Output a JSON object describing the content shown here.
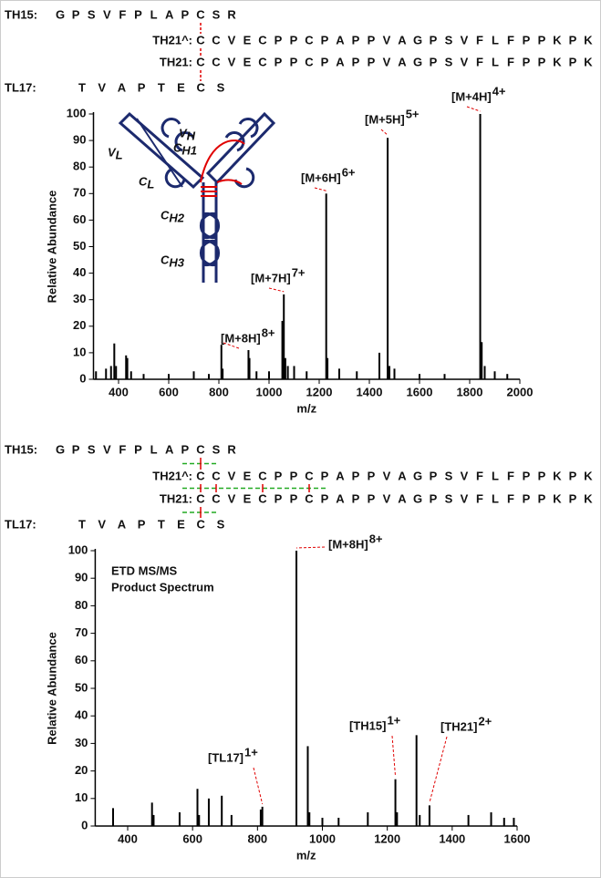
{
  "chart_data": [
    {
      "type": "bar",
      "xlabel": "m/z",
      "ylabel": "Relative Abundance",
      "color": "#000000",
      "xlim": [
        300,
        2000
      ],
      "xticks": [
        400,
        600,
        800,
        1000,
        1200,
        1400,
        1600,
        1800,
        2000
      ],
      "ylim": [
        0,
        100
      ],
      "yticks": [
        0,
        10,
        20,
        30,
        40,
        50,
        60,
        70,
        80,
        90,
        100
      ],
      "x": [
        310,
        350,
        370,
        383,
        390,
        430,
        435,
        450,
        500,
        600,
        700,
        760,
        810,
        815,
        918,
        922,
        950,
        1000,
        1053,
        1059,
        1065,
        1075,
        1100,
        1150,
        1228,
        1233,
        1280,
        1350,
        1440,
        1473,
        1480,
        1500,
        1600,
        1700,
        1842,
        1848,
        1860,
        1900,
        1950
      ],
      "values": [
        3,
        4,
        5,
        13.5,
        5,
        9,
        8,
        3,
        2,
        2,
        3,
        2,
        13,
        4,
        11,
        8,
        3,
        3,
        22,
        32,
        8,
        5,
        5,
        3,
        70,
        8,
        4,
        3,
        10,
        91,
        5,
        4,
        2,
        2,
        100,
        14,
        5,
        3,
        2
      ],
      "annotation_color": "#e00000",
      "annotations": [
        {
          "text": "[M+8H]",
          "sup": "8+",
          "x": 810
        },
        {
          "text": "[M+7H]",
          "sup": "7+",
          "x": 1059
        },
        {
          "text": "[M+6H]",
          "sup": "6+",
          "x": 1228
        },
        {
          "text": "[M+5H]",
          "sup": "5+",
          "x": 1473
        },
        {
          "text": "[M+4H]",
          "sup": "4+",
          "x": 1842
        }
      ],
      "highlight": "C",
      "highlight_color": "#e00000",
      "link_color": "#e00000",
      "sequences": [
        {
          "label": "TH15:",
          "residues": "GPSVFPLAPCSR"
        },
        {
          "label": "TH21^:",
          "residues": "CCVECPPCPAPPVAGPSVFLFPPKPK"
        },
        {
          "label": "TH21:",
          "residues": "CCVECPPCPAPPVAGPSVFLFPPKPK"
        },
        {
          "label": "TL17:",
          "residues": "TVAPTECS"
        }
      ],
      "inset_labels": [
        {
          "main": "V",
          "sub": "H"
        },
        {
          "main": "V",
          "sub": "L"
        },
        {
          "main": "C",
          "sub": "H1"
        },
        {
          "main": "C",
          "sub": "L"
        },
        {
          "main": "C",
          "sub": "H2"
        },
        {
          "main": "C",
          "sub": "H3"
        }
      ]
    },
    {
      "type": "bar",
      "xlabel": "m/z",
      "ylabel": "Relative Abundance",
      "color": "#000000",
      "title": [
        "ETD MS/MS",
        "Product Spectrum"
      ],
      "xlim": [
        300,
        1600
      ],
      "xticks": [
        400,
        600,
        800,
        1000,
        1200,
        1400,
        1600
      ],
      "ylim": [
        0,
        100
      ],
      "yticks": [
        0,
        10,
        20,
        30,
        40,
        50,
        60,
        70,
        80,
        90,
        100
      ],
      "x": [
        355,
        475,
        480,
        560,
        615,
        620,
        650,
        690,
        720,
        810,
        815,
        920,
        955,
        960,
        1000,
        1050,
        1140,
        1225,
        1230,
        1290,
        1300,
        1330,
        1450,
        1520,
        1560,
        1590
      ],
      "values": [
        6.5,
        8.5,
        4,
        5,
        13.5,
        4,
        10,
        11,
        4,
        6,
        7,
        100,
        29,
        5,
        3,
        3,
        5,
        17,
        5,
        33,
        4,
        7.5,
        4,
        5,
        3,
        3
      ],
      "annotation_color": "#e00000",
      "annotations": [
        {
          "text": "[M+8H]",
          "sup": "8+",
          "x": 920
        },
        {
          "text": "[TL17]",
          "sup": "1+",
          "x": 815
        },
        {
          "text": "[TH15]",
          "sup": "1+",
          "x": 1225
        },
        {
          "text": "[TH21]",
          "sup": "2+",
          "x": 1330
        }
      ],
      "highlight": "C",
      "highlight_color": "#e00000",
      "link_color": "#22aa22",
      "sequences": [
        {
          "label": "TH15:",
          "residues": "GPSVFPLAPCSR"
        },
        {
          "label": "TH21^:",
          "residues": "CCVECPPCPAPPVAGPSVFLFPPKPK"
        },
        {
          "label": "TH21:",
          "residues": "CCVECPPCPAPPVAGPSVFLFPPKPK"
        },
        {
          "label": "TL17:",
          "residues": "TVAPTECS"
        }
      ]
    }
  ]
}
